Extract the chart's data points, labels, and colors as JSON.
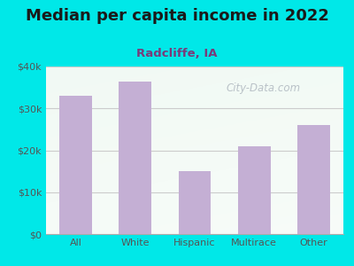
{
  "title": "Median per capita income in 2022",
  "subtitle": "Radcliffe, IA",
  "categories": [
    "All",
    "White",
    "Hispanic",
    "Multirace",
    "Other"
  ],
  "values": [
    33000,
    36500,
    15000,
    21000,
    26000
  ],
  "bar_color": "#c4afd4",
  "title_fontsize": 13,
  "subtitle_fontsize": 9.5,
  "subtitle_color": "#7a3a7a",
  "title_color": "#1a1a1a",
  "tick_color": "#555555",
  "bg_outer": "#00e8e8",
  "ylim": [
    0,
    40000
  ],
  "yticks": [
    0,
    10000,
    20000,
    30000,
    40000
  ],
  "ytick_labels": [
    "$0",
    "$10k",
    "$20k",
    "$30k",
    "$40k"
  ],
  "watermark": "City-Data.com",
  "grid_color": "#cccccc"
}
